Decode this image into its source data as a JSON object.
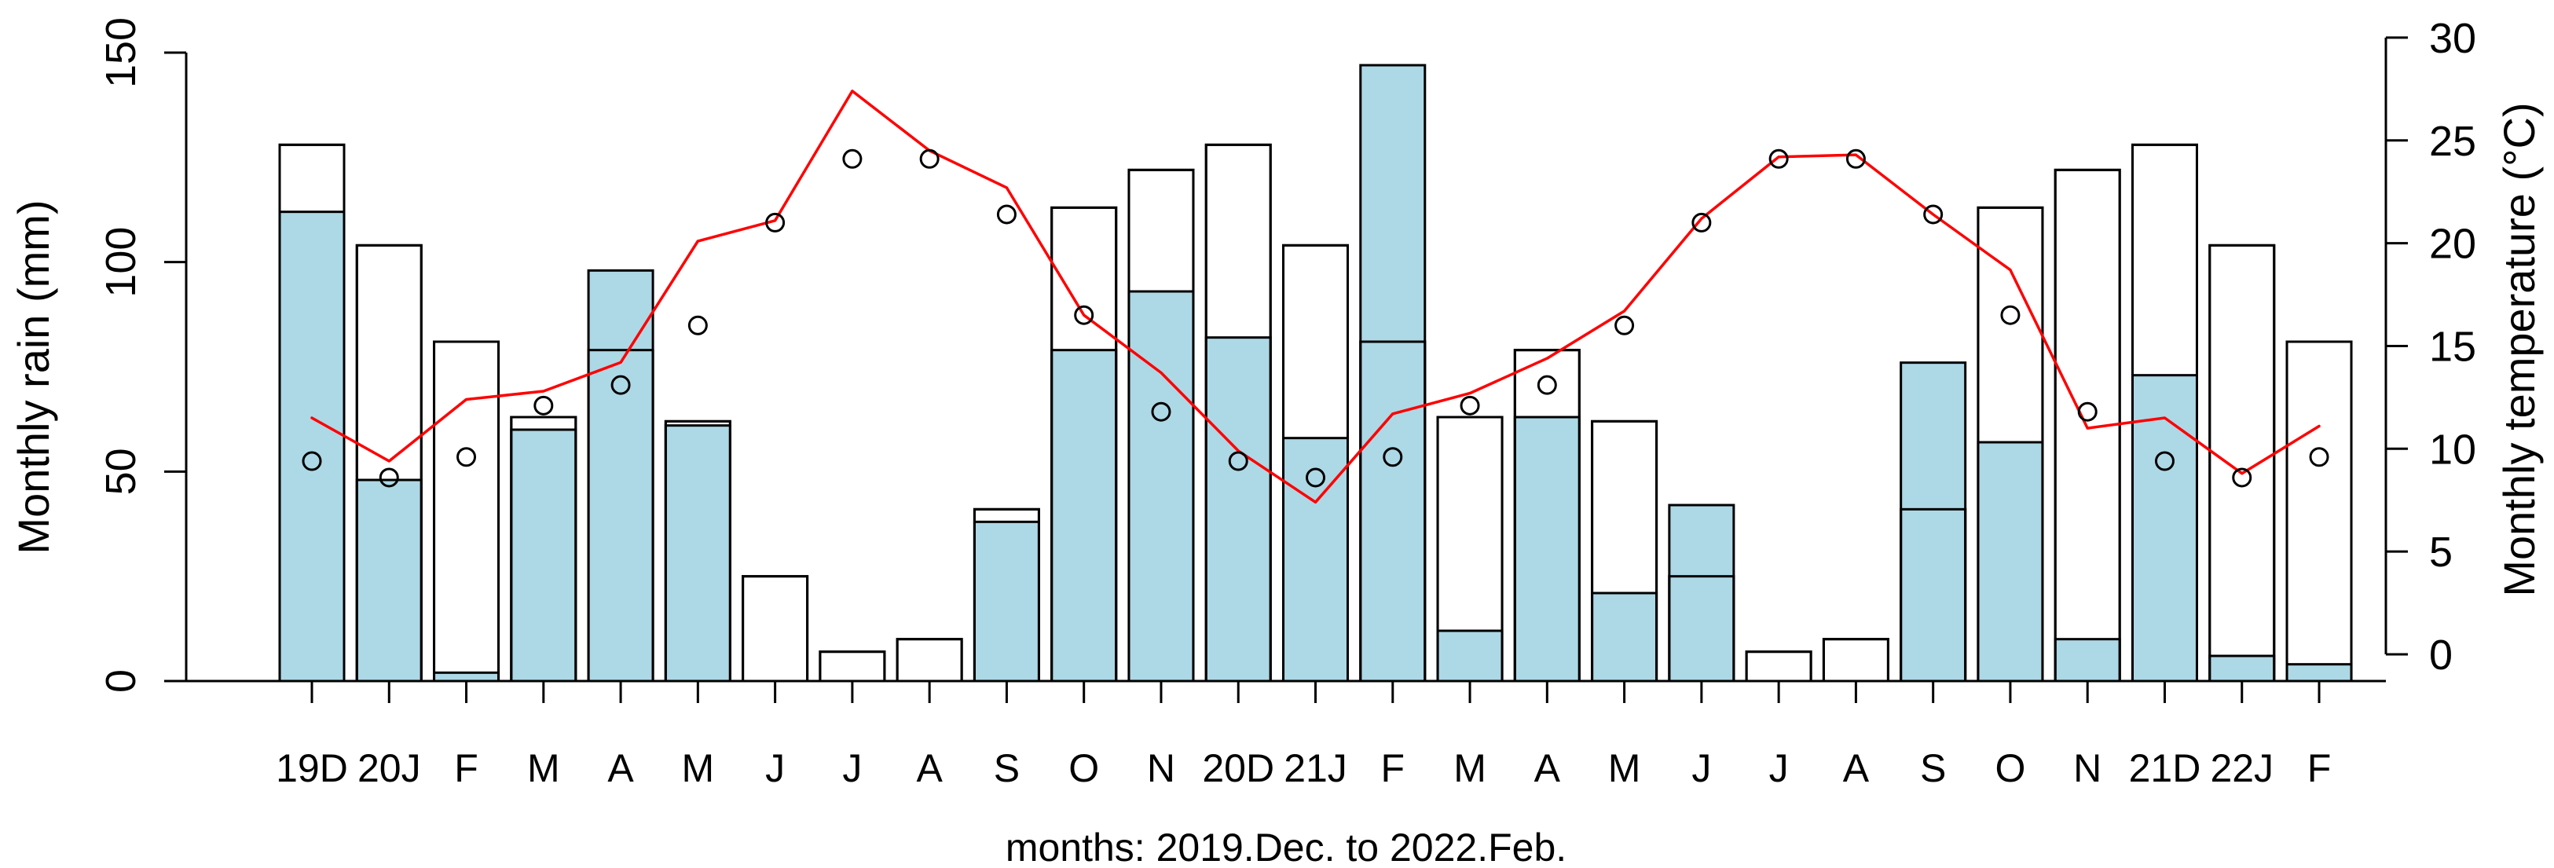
{
  "figure": {
    "background": "#ffffff",
    "caption": "months: 2019.Dec. to 2022.Feb."
  },
  "chart_data": {
    "type": "bar",
    "subtype": "overlaid-climate-bars-with-temperature-line",
    "title": "",
    "xlabel": "months: 2019.Dec. to 2022.Feb.",
    "ylabel_left": "Monthly rain (mm)",
    "ylabel_right": "Monthly temperature (°C)",
    "categories": [
      "19D",
      "20J",
      "F",
      "M",
      "A",
      "M",
      "J",
      "J",
      "A",
      "S",
      "O",
      "N",
      "20D",
      "21J",
      "F",
      "M",
      "A",
      "M",
      "J",
      "J",
      "A",
      "S",
      "O",
      "N",
      "21D",
      "22J",
      "F"
    ],
    "y_left_axis": {
      "min": 0,
      "max": 150,
      "ticks": [
        0,
        50,
        100,
        150
      ]
    },
    "y_right_axis": {
      "min": 0,
      "max": 30,
      "ticks": [
        0,
        5,
        10,
        15,
        20,
        25,
        30
      ]
    },
    "grid": false,
    "legend": "none",
    "colors": {
      "actual_rain_fill": "#ADD8E6",
      "normal_rain_fill": "#ffffff",
      "bar_border": "#000000",
      "temp_line": "#ff0000",
      "temp_point": "#000000",
      "text": "#000000"
    },
    "series": [
      {
        "name": "normal monthly rain (mm)",
        "type": "bar",
        "style": "white-outline",
        "values": [
          128,
          104,
          81,
          63,
          79,
          62,
          25,
          7,
          10,
          41,
          113,
          122,
          128,
          104,
          81,
          63,
          79,
          62,
          25,
          7,
          10,
          41,
          113,
          122,
          128,
          104,
          81
        ]
      },
      {
        "name": "actual monthly rain (mm)",
        "type": "bar",
        "style": "lightblue-fill",
        "values": [
          112,
          48,
          2,
          60,
          98,
          61,
          0,
          0,
          0,
          38,
          79,
          93,
          82,
          58,
          147,
          12,
          63,
          21,
          42,
          0,
          0,
          76,
          57,
          10,
          73,
          6,
          4
        ]
      },
      {
        "name": "actual monthly temperature (°C)",
        "type": "line",
        "style": "red-solid-line",
        "values": [
          11.5,
          9.4,
          12.4,
          12.8,
          14.2,
          20.1,
          21.1,
          27.4,
          24.5,
          22.7,
          16.5,
          13.7,
          9.9,
          7.4,
          11.7,
          12.7,
          14.4,
          16.7,
          21.2,
          24.2,
          24.3,
          21.4,
          18.7,
          11.0,
          11.5,
          8.8,
          11.1
        ]
      },
      {
        "name": "normal monthly temperature (°C)",
        "type": "scatter",
        "style": "open-circle",
        "values": [
          9.4,
          8.6,
          9.6,
          12.1,
          13.1,
          16.0,
          21.0,
          24.1,
          24.1,
          21.4,
          16.5,
          11.8,
          9.4,
          8.6,
          9.6,
          12.1,
          13.1,
          16.0,
          21.0,
          24.1,
          24.1,
          21.4,
          16.5,
          11.8,
          9.4,
          8.6,
          9.6
        ]
      }
    ]
  }
}
